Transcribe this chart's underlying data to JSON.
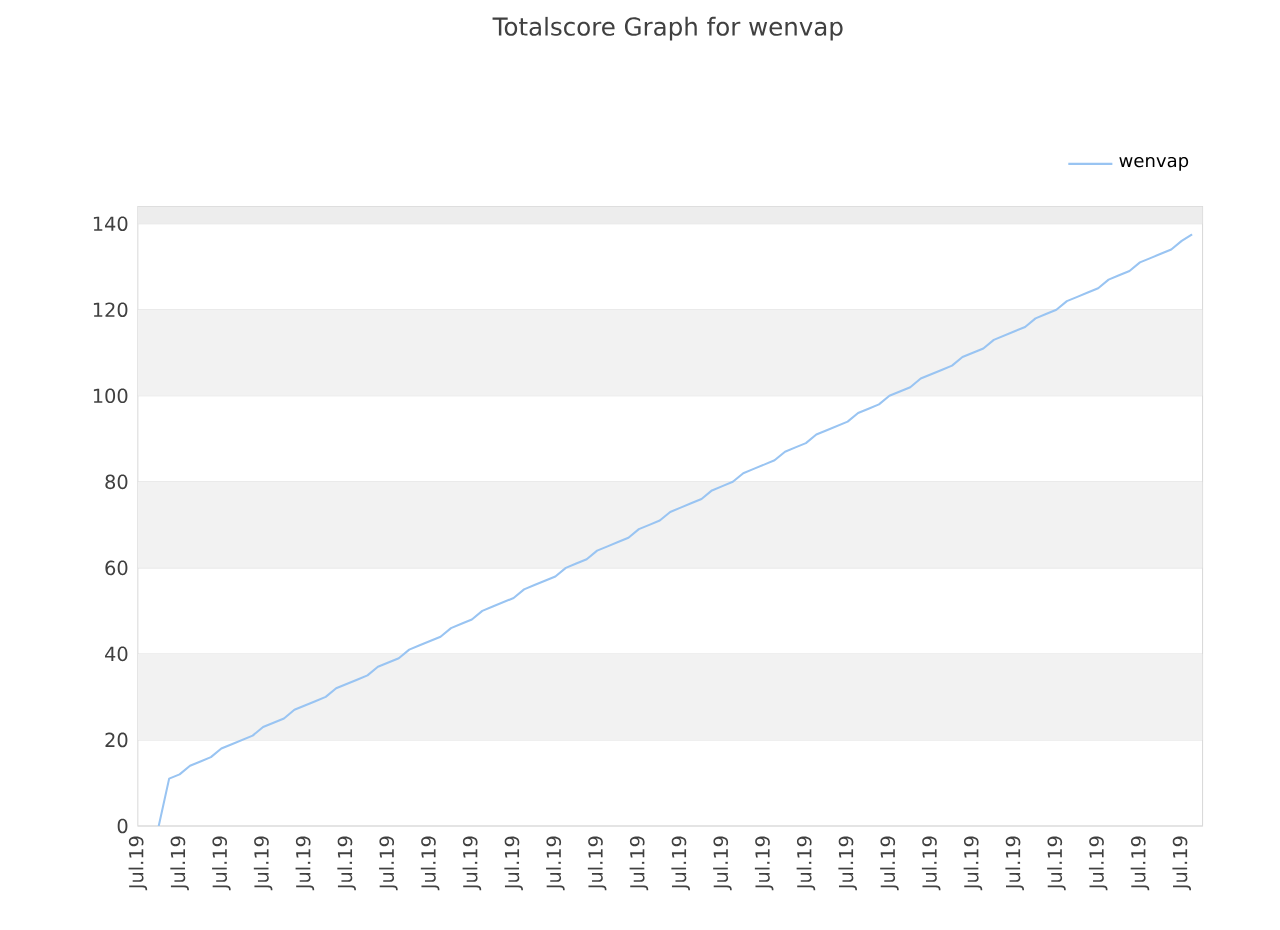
{
  "chart_data": {
    "type": "line",
    "title": "Totalscore Graph for wenvap",
    "categories": [
      "Jul.19",
      null,
      null,
      null,
      "Jul.19",
      null,
      null,
      null,
      "Jul.19",
      null,
      null,
      null,
      "Jul.19",
      null,
      null,
      null,
      "Jul.19",
      null,
      null,
      null,
      "Jul.19",
      null,
      null,
      null,
      "Jul.19",
      null,
      null,
      null,
      "Jul.19",
      null,
      null,
      null,
      "Jul.19",
      null,
      null,
      null,
      "Jul.19",
      null,
      null,
      null,
      "Jul.19",
      null,
      null,
      null,
      "Jul.19",
      null,
      null,
      null,
      "Jul.19",
      null,
      null,
      null,
      "Jul.19",
      null,
      null,
      null,
      "Jul.19",
      null,
      null,
      null,
      "Jul.19",
      null,
      null,
      null,
      "Jul.19",
      null,
      null,
      null,
      "Jul.19",
      null,
      null,
      null,
      "Jul.19",
      null,
      null,
      null,
      "Jul.19",
      null,
      null,
      null,
      "Jul.19",
      null,
      null,
      null,
      "Jul.19",
      null,
      null,
      null,
      "Jul.19",
      null,
      null,
      null,
      "Jul.19",
      null,
      null,
      null,
      "Jul.19",
      null,
      null,
      null,
      "Jul.19",
      null
    ],
    "series": [
      {
        "name": "wenvap",
        "color": "#99c4f2",
        "values": [
          null,
          null,
          0,
          11,
          12,
          14,
          15,
          16,
          18,
          19,
          20,
          21,
          23,
          24,
          25,
          27,
          28,
          29,
          30,
          32,
          33,
          34,
          35,
          37,
          38,
          39,
          41,
          42,
          43,
          44,
          46,
          47,
          48,
          50,
          51,
          52,
          53,
          55,
          56,
          57,
          58,
          60,
          61,
          62,
          64,
          65,
          66,
          67,
          69,
          70,
          71,
          73,
          74,
          75,
          76,
          78,
          79,
          80,
          82,
          83,
          84,
          85,
          87,
          88,
          89,
          91,
          92,
          93,
          94,
          96,
          97,
          98,
          100,
          101,
          102,
          104,
          105,
          106,
          107,
          109,
          110,
          111,
          113,
          114,
          115,
          116,
          118,
          119,
          120,
          122,
          123,
          124,
          125,
          127,
          128,
          129,
          131,
          132,
          133,
          134,
          136,
          137.5
        ]
      }
    ],
    "ylim": [
      0,
      144
    ],
    "yticks": [
      0,
      20,
      40,
      60,
      80,
      100,
      120,
      140
    ],
    "bands": [
      {
        "axis": "y",
        "from": 20,
        "to": 40,
        "color": "#f2f2f2"
      },
      {
        "axis": "y",
        "from": 60,
        "to": 80,
        "color": "#f2f2f2"
      },
      {
        "axis": "y",
        "from": 100,
        "to": 120,
        "color": "#f2f2f2"
      },
      {
        "axis": "y",
        "from": 140,
        "to": 144,
        "color": "#ededed"
      }
    ],
    "grid": "y",
    "legend": "top right",
    "line_style": "solid"
  }
}
